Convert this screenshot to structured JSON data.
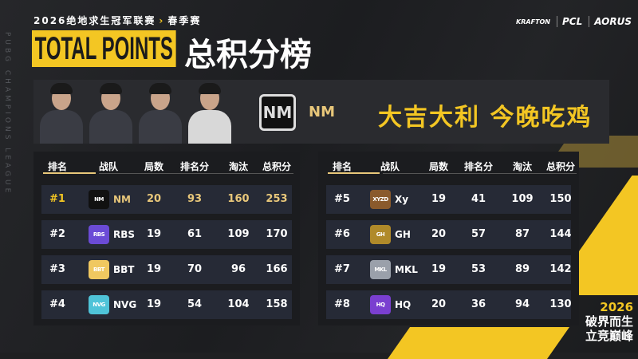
{
  "header": {
    "subtitle": "2026绝地求生冠军联赛",
    "arrow": "›",
    "season": "春季赛",
    "title_en": "TOTAL POINTS",
    "title_cn": "总积分榜",
    "side_text": "PUBG CHAMPIONS LEAGUE",
    "logos": [
      "KRAFTON",
      "PCL",
      "AORUS"
    ]
  },
  "hero": {
    "team_logo": "NM",
    "team": "NM",
    "slogan": "大吉大利 今晚吃鸡"
  },
  "columns": [
    "排名",
    "战队",
    "局数",
    "排名分",
    "淘汰",
    "总积分"
  ],
  "left_rows": [
    {
      "rank": "#1",
      "logo": "NM",
      "team": "NM",
      "games": "20",
      "place": "93",
      "elims": "160",
      "total": "253",
      "logo_color": "#111111"
    },
    {
      "rank": "#2",
      "logo": "RBS",
      "team": "RBS",
      "games": "19",
      "place": "61",
      "elims": "109",
      "total": "170",
      "logo_color": "#6b4bd6"
    },
    {
      "rank": "#3",
      "logo": "BBT",
      "team": "BBT",
      "games": "19",
      "place": "70",
      "elims": "96",
      "total": "166",
      "logo_color": "#f0c860"
    },
    {
      "rank": "#4",
      "logo": "NVG",
      "team": "NVG",
      "games": "19",
      "place": "54",
      "elims": "104",
      "total": "158",
      "logo_color": "#4fc3d8"
    }
  ],
  "right_rows": [
    {
      "rank": "#5",
      "logo": "XYZD",
      "team": "Xy",
      "games": "19",
      "place": "41",
      "elims": "109",
      "total": "150",
      "logo_color": "#8a5a2c"
    },
    {
      "rank": "#6",
      "logo": "GH",
      "team": "GH",
      "games": "20",
      "place": "57",
      "elims": "87",
      "total": "144",
      "logo_color": "#b08a2a"
    },
    {
      "rank": "#7",
      "logo": "MKL",
      "team": "MKL",
      "games": "19",
      "place": "53",
      "elims": "89",
      "total": "142",
      "logo_color": "#9aa0aa"
    },
    {
      "rank": "#8",
      "logo": "HQ",
      "team": "HQ",
      "games": "20",
      "place": "36",
      "elims": "94",
      "total": "130",
      "logo_color": "#7a3fd0"
    }
  ],
  "footer": {
    "year": "2026",
    "line1": "破界而生",
    "line2": "立竞巅峰"
  },
  "colors": {
    "accent": "#f3c623",
    "gold_text": "#e8c77a",
    "row_bg": "#262a36"
  }
}
